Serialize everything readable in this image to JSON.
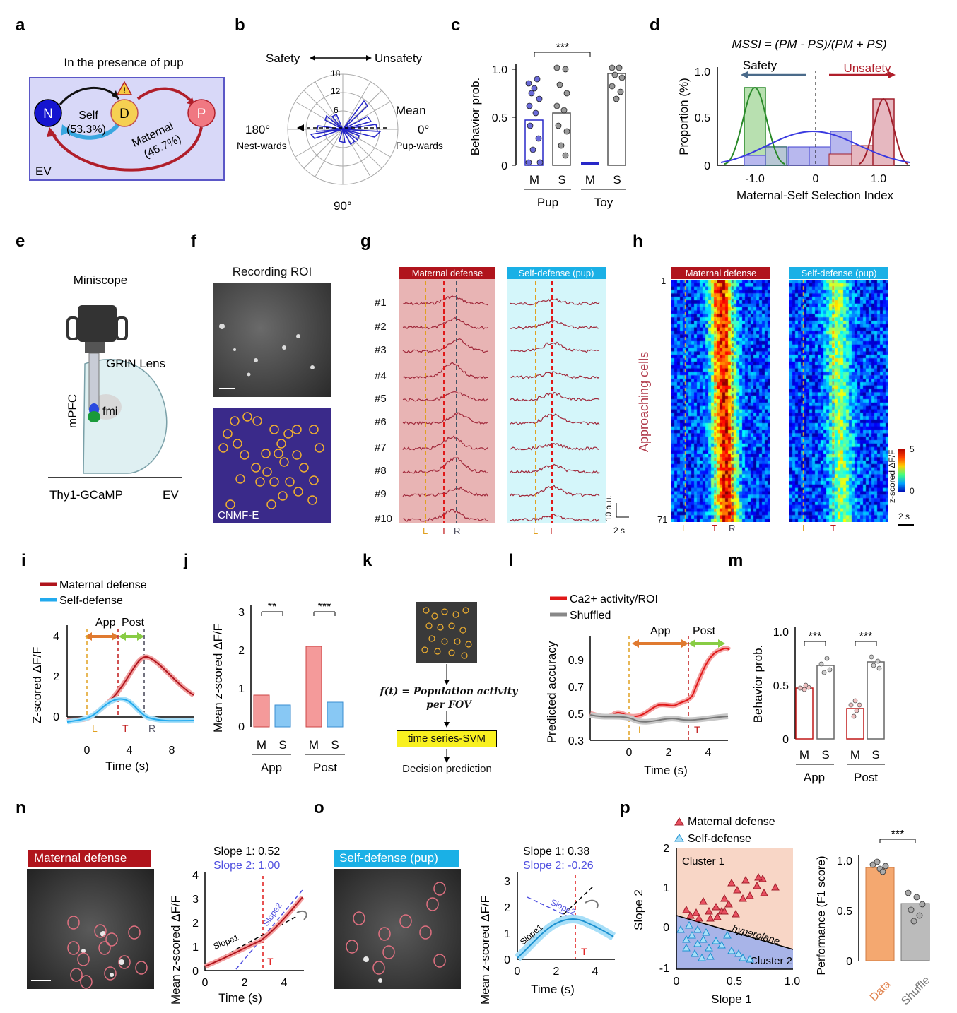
{
  "panels": {
    "a": {
      "letter": "a",
      "title": "In the presence of pup",
      "node_n": "N",
      "node_d": "D",
      "node_p": "P",
      "self": "Self",
      "self_pct": "(53.3%)",
      "maternal": "Maternal",
      "maternal_pct": "(46.7%)",
      "box": "EV",
      "warning_icon": "warning-icon"
    },
    "b": {
      "letter": "b",
      "left": "Safety",
      "right": "Unsafety",
      "r_ticks": [
        "18",
        "12",
        "6"
      ],
      "mean": "Mean",
      "deg_left": "180°",
      "deg_right": "0°",
      "deg_bottom": "90°",
      "nest": "Nest-wards",
      "pup": "Pup-wards"
    },
    "c": {
      "letter": "c",
      "ylabel": "Behavior prob.",
      "yticks": [
        "0",
        "0.5",
        "1.0"
      ],
      "sig": "***",
      "x": [
        "M",
        "S",
        "M",
        "S"
      ],
      "groups": [
        "Pup",
        "Toy"
      ]
    },
    "d": {
      "letter": "d",
      "formula": "MSSI = (PM - PS)/(PM + PS)",
      "safety": "Safety",
      "unsafety": "Unsafety",
      "ylabel": "Proportion (%)",
      "yticks": [
        "0",
        "0.5",
        "1.0"
      ],
      "xticks": [
        "-1.0",
        "0",
        "1.0"
      ],
      "xlabel": "Maternal-Self Selection Index"
    },
    "e": {
      "letter": "e",
      "miniscope": "Miniscope",
      "grin": "GRIN Lens",
      "mpfc": "mPFC",
      "fmi": "fmi",
      "thy": "Thy1-GCaMP",
      "ev": "EV"
    },
    "f": {
      "letter": "f",
      "title": "Recording ROI",
      "cnmf": "CNMF-E"
    },
    "g": {
      "letter": "g",
      "maternal": "Maternal defense",
      "self": "Self-defense (pup)",
      "rows": [
        "#1",
        "#2",
        "#3",
        "#4",
        "#5",
        "#6",
        "#7",
        "#8",
        "#9",
        "#10"
      ],
      "L": "L",
      "T": "T",
      "R": "R",
      "scale_y": "10 a.u.",
      "scale_x": "2 s"
    },
    "h": {
      "letter": "h",
      "maternal": "Maternal defense",
      "self": "Self-defense (pup)",
      "ylabel": "Approaching cells",
      "top": "1",
      "bottom": "71",
      "cbar": "z-scored ΔF/F",
      "cbar_max": "5",
      "cbar_min": "0",
      "scale": "2 s",
      "L": "L",
      "T": "T",
      "R": "R"
    },
    "i": {
      "letter": "i",
      "legend1": "Maternal defense",
      "legend2": "Self-defense",
      "app": "App",
      "post": "Post",
      "ylabel": "Z-scored ΔF/F",
      "yticks": [
        "0",
        "2",
        "4"
      ],
      "xticks": [
        "0",
        "4",
        "8"
      ],
      "xlabel": "Time (s)",
      "L": "L",
      "T": "T",
      "R": "R"
    },
    "j": {
      "letter": "j",
      "ylabel": "Mean z-scored  ΔF/F",
      "yticks": [
        "0",
        "1",
        "2",
        "3"
      ],
      "sig1": "**",
      "sig2": "***",
      "x": [
        "M",
        "S",
        "M",
        "S"
      ],
      "groups": [
        "App",
        "Post"
      ]
    },
    "k": {
      "letter": "k",
      "formula": "f(t) = Population activity per FOV",
      "svm": "time series-SVM",
      "out": "Decision prediction"
    },
    "l": {
      "letter": "l",
      "legend1": "Ca2+ activity/ROI",
      "legend2": "Shuffled",
      "app": "App",
      "post": "Post",
      "ylabel": "Predicted accuracy",
      "yticks": [
        "0.3",
        "0.5",
        "0.7",
        "0.9"
      ],
      "xticks": [
        "0",
        "2",
        "4"
      ],
      "xlabel": "Time (s)",
      "L": "L",
      "T": "T"
    },
    "m": {
      "letter": "m",
      "ylabel": "Behavior prob.",
      "yticks": [
        "0",
        "0.5",
        "1.0"
      ],
      "sig1": "***",
      "sig2": "***",
      "x": [
        "M",
        "S",
        "M",
        "S"
      ],
      "groups": [
        "App",
        "Post"
      ]
    },
    "n": {
      "letter": "n",
      "label": "Maternal defense",
      "slope1": "Slope 1:  0.52",
      "slope2": "Slope 2:  1.00",
      "ylabel": "Mean z-scored ΔF/F",
      "yticks": [
        "0",
        "1",
        "2",
        "3",
        "4"
      ],
      "xticks": [
        "0",
        "2",
        "4"
      ],
      "xlabel": "Time (s)",
      "s1": "Slope1",
      "s2": "Slope2",
      "T": "T"
    },
    "o": {
      "letter": "o",
      "label": "Self-defense (pup)",
      "slope1": "Slope 1:  0.38",
      "slope2": "Slope 2:  -0.26",
      "ylabel": "Mean z-scored ΔF/F",
      "yticks": [
        "0",
        "1",
        "2",
        "3"
      ],
      "xticks": [
        "0",
        "2",
        "4"
      ],
      "xlabel": "Time (s)",
      "s1": "Slope1",
      "s2": "Slope2",
      "T": "T"
    },
    "p": {
      "letter": "p",
      "legend1": "Maternal defense",
      "legend2": "Self-defense",
      "cluster1": "Cluster 1",
      "cluster2": "Cluster 2",
      "hyper": "hyperplane",
      "ylabel": "Slope 2",
      "yticks": [
        "-1",
        "0",
        "1",
        "2"
      ],
      "xticks": [
        "0",
        "0.5",
        "1.0"
      ],
      "xlabel": "Slope 1",
      "perf_ylabel": "Performance (F1 score)",
      "perf_yticks": [
        "0",
        "0.5",
        "1.0"
      ],
      "sig": "***",
      "bars": [
        "Data",
        "Shuffle"
      ]
    }
  },
  "chart_data": [
    {
      "type": "bar",
      "panel": "c",
      "categories": [
        "Pup M",
        "Pup S",
        "Toy M",
        "Toy S"
      ],
      "values": [
        0.47,
        0.54,
        0.01,
        0.95
      ],
      "ylim": [
        0,
        1
      ]
    },
    {
      "type": "bar",
      "panel": "d",
      "categories": [
        "Maternal-Self Selection Index"
      ],
      "xlim": [
        -1.4,
        1.4
      ],
      "ylim": [
        0,
        1.2
      ]
    },
    {
      "type": "line",
      "panel": "i",
      "series": [
        {
          "name": "Maternal defense",
          "peak": 2.9
        },
        {
          "name": "Self-defense",
          "peak": 0.9
        }
      ],
      "xlim": [
        -2,
        10
      ],
      "ylim": [
        -0.5,
        4
      ]
    },
    {
      "type": "bar",
      "panel": "j",
      "categories": [
        "App M",
        "App S",
        "Post M",
        "Post S"
      ],
      "values": [
        0.84,
        0.58,
        2.12,
        0.66
      ],
      "ylim": [
        0,
        3
      ]
    },
    {
      "type": "line",
      "panel": "l",
      "series": [
        {
          "name": "Ca2+ activity/ROI",
          "end": 0.96
        },
        {
          "name": "Shuffled",
          "end": 0.48
        }
      ],
      "xlim": [
        -2,
        5
      ],
      "ylim": [
        0.3,
        1.0
      ]
    },
    {
      "type": "bar",
      "panel": "m",
      "categories": [
        "App M",
        "App S",
        "Post M",
        "Post S"
      ],
      "values": [
        0.47,
        0.68,
        0.28,
        0.71
      ],
      "ylim": [
        0,
        1
      ]
    },
    {
      "type": "line",
      "panel": "n",
      "xlim": [
        0,
        5
      ],
      "ylim": [
        0,
        4.5
      ]
    },
    {
      "type": "line",
      "panel": "o",
      "xlim": [
        0,
        5
      ],
      "ylim": [
        0,
        3
      ]
    },
    {
      "type": "scatter",
      "panel": "p",
      "xlim": [
        0,
        1
      ],
      "ylim": [
        -1,
        2
      ]
    },
    {
      "type": "bar",
      "panel": "p-perf",
      "categories": [
        "Data",
        "Shuffle"
      ],
      "values": [
        0.93,
        0.57
      ],
      "ylim": [
        0,
        1
      ]
    }
  ]
}
